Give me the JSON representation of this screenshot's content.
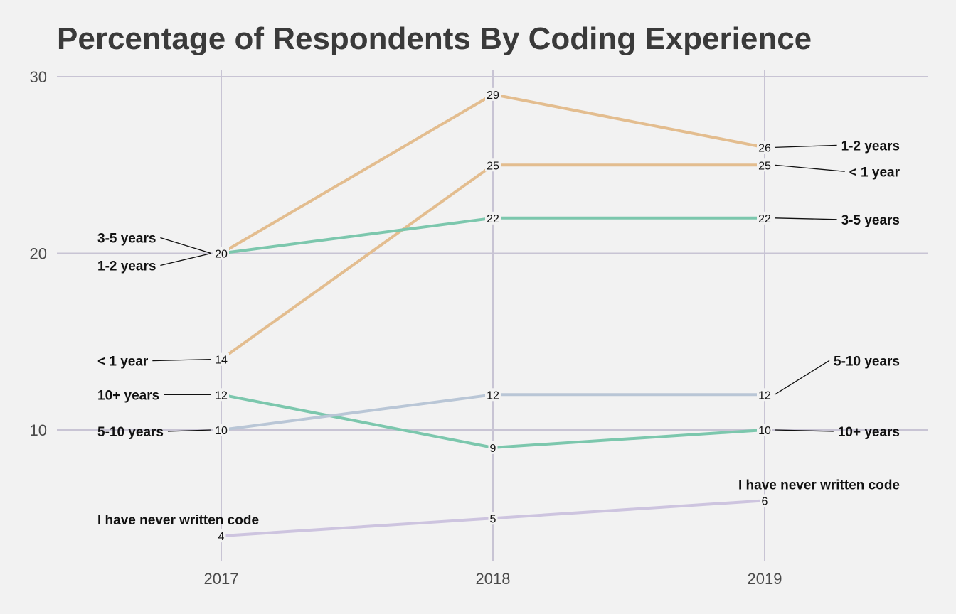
{
  "chart_data": {
    "type": "line",
    "title": "Percentage of Respondents By Coding Experience",
    "xlabel": "",
    "ylabel": "",
    "x": [
      "2017",
      "2018",
      "2019"
    ],
    "ylim": [
      3.8,
      30
    ],
    "yticks": [
      "10",
      "20",
      "30"
    ],
    "grid": true,
    "legend": "direct labels at both ends",
    "series": [
      {
        "name": "1-2 years",
        "values": [
          20,
          29,
          26
        ],
        "color": "#e3bd8f"
      },
      {
        "name": "< 1 year",
        "values": [
          14,
          25,
          25
        ],
        "color": "#e3bd8f"
      },
      {
        "name": "3-5 years",
        "values": [
          20,
          22,
          22
        ],
        "color": "#7cc7ad"
      },
      {
        "name": "10+ years",
        "values": [
          12,
          9,
          10
        ],
        "color": "#7cc7ad"
      },
      {
        "name": "5-10 years",
        "values": [
          10,
          12,
          12
        ],
        "color": "#b9c6d6"
      },
      {
        "name": "I have never written code",
        "values": [
          4,
          5,
          6
        ],
        "color": "#cdc4df"
      }
    ]
  }
}
